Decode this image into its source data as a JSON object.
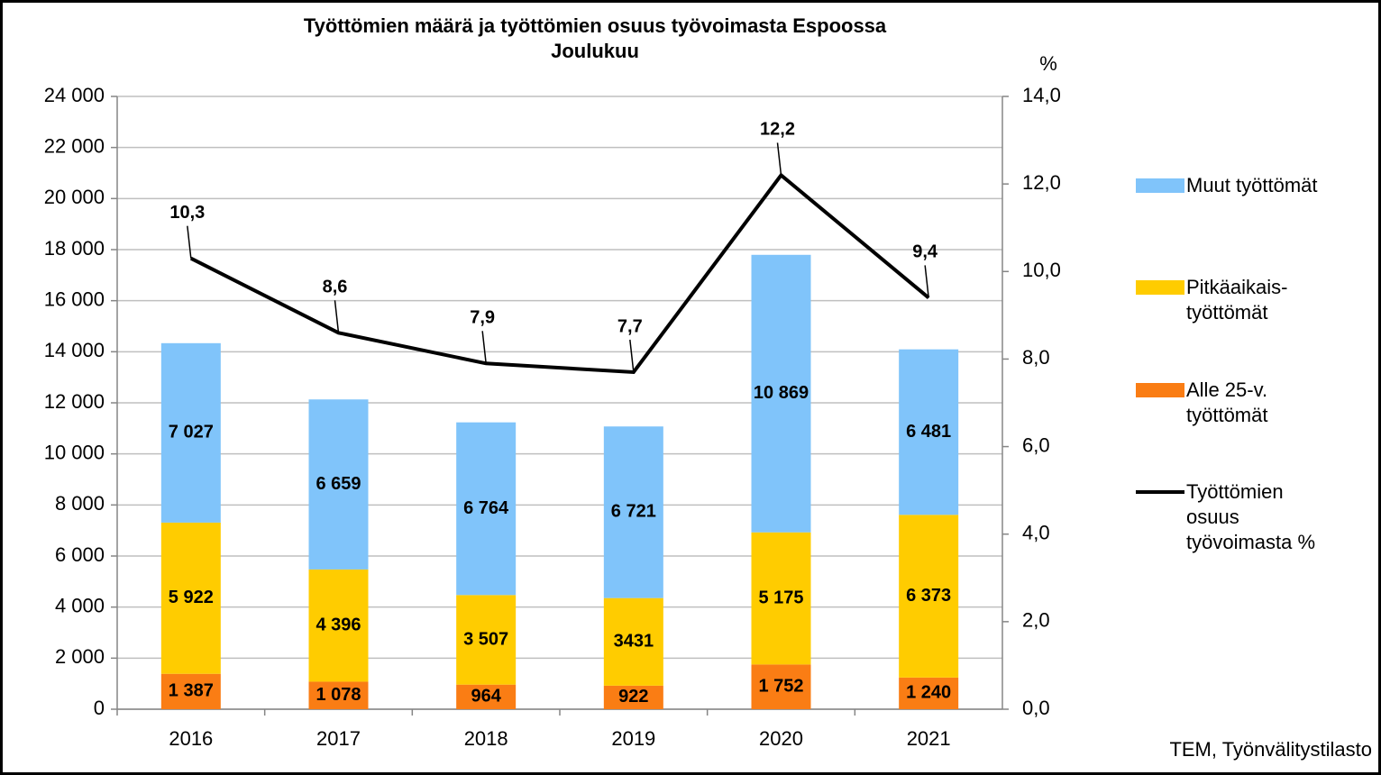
{
  "chart_data": {
    "type": "bar",
    "title": "Työttömien määrä ja työttömien osuus työvoimasta Espoossa",
    "subtitle": "Joulukuu",
    "y2_label": "%",
    "source": "TEM, Työnvälitystilasto",
    "categories": [
      "2016",
      "2017",
      "2018",
      "2019",
      "2020",
      "2021"
    ],
    "stacked": true,
    "series": [
      {
        "name": "Alle 25-v. työttömät",
        "color": "#fa7d14",
        "values": [
          1387,
          1078,
          964,
          922,
          1752,
          1240
        ],
        "value_labels": [
          "1 387",
          "1 078",
          "964",
          "922",
          "1 752",
          "1 240"
        ]
      },
      {
        "name": "Pitkäaikais-työttömät",
        "color": "#ffcc00",
        "values": [
          5922,
          4396,
          3507,
          3431,
          5175,
          6373
        ],
        "value_labels": [
          "5 922",
          "4 396",
          "3 507",
          "3431",
          "5 175",
          "6 373"
        ]
      },
      {
        "name": "Muut työttömät",
        "color": "#80c4fa",
        "values": [
          7027,
          6659,
          6764,
          6721,
          10869,
          6481
        ],
        "value_labels": [
          "7 027",
          "6 659",
          "6 764",
          "6 721",
          "10 869",
          "6 481"
        ]
      },
      {
        "name": "Työttömien osuus työvoimasta %",
        "type": "line",
        "axis": "y2",
        "color": "#000000",
        "values": [
          10.3,
          8.6,
          7.9,
          7.7,
          12.2,
          9.4
        ],
        "value_labels": [
          "10,3",
          "8,6",
          "7,9",
          "7,7",
          "12,2",
          "9,4"
        ]
      }
    ],
    "ylim": [
      0,
      24000
    ],
    "yticks": [
      0,
      {
        "value": 2000,
        "label": "2 000"
      },
      {
        "value": 4000,
        "label": "4 000"
      },
      {
        "value": 6000,
        "label": "6 000"
      },
      {
        "value": 8000,
        "label": "8 000"
      },
      {
        "value": 10000,
        "label": "10 000"
      },
      {
        "value": 12000,
        "label": "12 000"
      },
      {
        "value": 14000,
        "label": "14 000"
      },
      {
        "value": 16000,
        "label": "16 000"
      },
      {
        "value": 18000,
        "label": "18 000"
      },
      {
        "value": 20000,
        "label": "20 000"
      },
      {
        "value": 22000,
        "label": "22 000"
      },
      {
        "value": 24000,
        "label": "24 000"
      }
    ],
    "y2lim": [
      0,
      14
    ],
    "y2ticks": [
      {
        "value": 0,
        "label": "0,0"
      },
      {
        "value": 2,
        "label": "2,0"
      },
      {
        "value": 4,
        "label": "4,0"
      },
      {
        "value": 6,
        "label": "6,0"
      },
      {
        "value": 8,
        "label": "8,0"
      },
      {
        "value": 10,
        "label": "10,0"
      },
      {
        "value": 12,
        "label": "12,0"
      },
      {
        "value": 14,
        "label": "14,0"
      }
    ],
    "grid": true,
    "legend": "right"
  }
}
